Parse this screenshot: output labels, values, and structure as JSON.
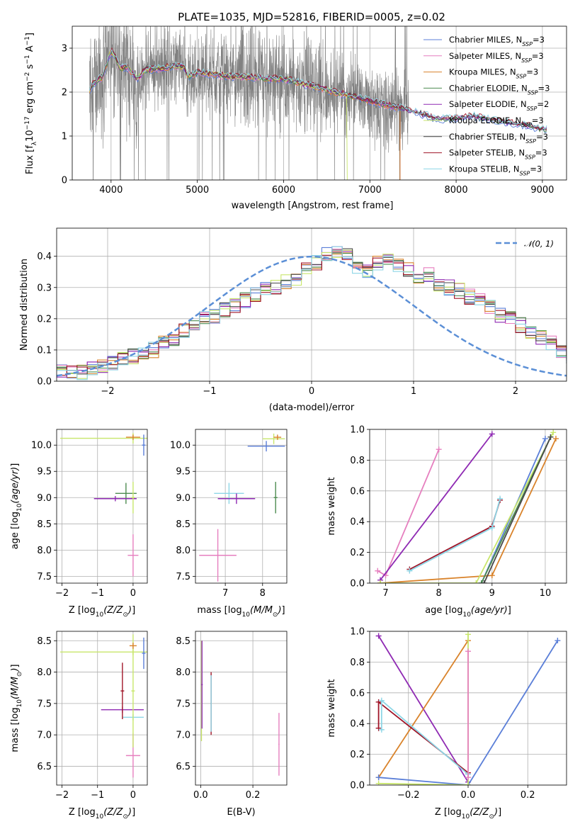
{
  "figure": {
    "title": "PLATE=1035, MJD=52816, FIBERID=0005, z=0.02"
  },
  "colors": {
    "chabrier_miles": "#5b7fd8",
    "salpeter_miles": "#e67fbf",
    "kroupa_miles": "#d9832b",
    "chabrier_elodie": "#4d8c50",
    "salpeter_elodie": "#8f2ab3",
    "kroupa_elodie": "#c8e66b",
    "chabrier_stelib": "#4a4a4a",
    "salpeter_stelib": "#a01528",
    "kroupa_stelib": "#8dd6e6",
    "data": "#808080",
    "normal": "#5b8fd6"
  },
  "chart_data": [
    {
      "id": "spectrum",
      "type": "line",
      "xlabel": "wavelength [Angstrom, rest frame]",
      "ylabel": "Flux [f",
      "ylabel_parts": {
        "a": "Flux [f",
        "sub1": "λ",
        "b": "10",
        "sup1": "−17",
        "c": " erg cm",
        "sup2": "−2",
        "d": " s",
        "sup3": "−1",
        "e": " A",
        "sup4": "−1",
        "f": "]"
      },
      "xlim": [
        3550,
        9280
      ],
      "ylim": [
        0,
        3.5
      ],
      "xticks": [
        4000,
        5000,
        6000,
        7000,
        8000,
        9000
      ],
      "yticks": [
        0,
        1,
        2,
        3
      ],
      "legend": [
        {
          "label": "Chabrier MILES, N",
          "sub": "SSP",
          "tail": "=3",
          "color": "chabrier_miles"
        },
        {
          "label": "Salpeter MILES, N",
          "sub": "SSP",
          "tail": "=3",
          "color": "salpeter_miles"
        },
        {
          "label": "Kroupa MILES, N",
          "sub": "SSP",
          "tail": "=3",
          "color": "kroupa_miles"
        },
        {
          "label": "Chabrier ELODIE, N",
          "sub": "SSP",
          "tail": "=3",
          "color": "chabrier_elodie"
        },
        {
          "label": "Salpeter ELODIE, N",
          "sub": "SSP",
          "tail": "=2",
          "color": "salpeter_elodie"
        },
        {
          "label": "Kroupa ELODIE, N",
          "sub": "SSP",
          "tail": "=3",
          "color": "kroupa_elodie"
        },
        {
          "label": "Chabrier STELIB, N",
          "sub": "SSP",
          "tail": "=3",
          "color": "chabrier_stelib"
        },
        {
          "label": "Salpeter STELIB, N",
          "sub": "SSP",
          "tail": "=3",
          "color": "salpeter_stelib"
        },
        {
          "label": "Kroupa STELIB, N",
          "sub": "SSP",
          "tail": "=3",
          "color": "kroupa_stelib"
        }
      ],
      "model_continuum": {
        "x": [
          3750,
          3800,
          3900,
          4000,
          4050,
          4100,
          4200,
          4300,
          4400,
          4600,
          4800,
          4850,
          4900,
          5000,
          5200,
          5400,
          5600,
          5800,
          6000,
          6200,
          6400,
          6600,
          6800,
          7000,
          7200,
          7400,
          7600,
          7800,
          8000,
          8200,
          8400,
          8600,
          8800,
          9000
        ],
        "y": [
          2.05,
          2.2,
          2.35,
          2.95,
          2.8,
          2.55,
          2.55,
          2.3,
          2.5,
          2.55,
          2.6,
          2.55,
          2.35,
          2.45,
          2.4,
          2.35,
          2.35,
          2.3,
          2.3,
          2.2,
          2.1,
          2.0,
          1.9,
          1.8,
          1.7,
          1.62,
          1.5,
          1.38,
          1.4,
          1.45,
          1.38,
          1.3,
          1.25,
          1.15
        ]
      }
    },
    {
      "id": "residuals",
      "type": "histogram",
      "xlabel": "(data-model)/error",
      "ylabel": "Normed distribution",
      "xlim": [
        -2.5,
        2.5
      ],
      "ylim": [
        0,
        0.49
      ],
      "xticks": [
        -2,
        -1,
        0,
        1,
        2
      ],
      "yticks": [
        0.0,
        0.1,
        0.2,
        0.3,
        0.4
      ],
      "legend_label": "𝒩(0, 1)",
      "bin_width": 0.1,
      "bin_start": -2.5,
      "base_values": [
        0.03,
        0.03,
        0.03,
        0.04,
        0.05,
        0.06,
        0.07,
        0.08,
        0.09,
        0.1,
        0.12,
        0.13,
        0.16,
        0.18,
        0.2,
        0.21,
        0.23,
        0.24,
        0.26,
        0.28,
        0.3,
        0.3,
        0.32,
        0.33,
        0.36,
        0.38,
        0.41,
        0.42,
        0.4,
        0.37,
        0.35,
        0.38,
        0.39,
        0.37,
        0.36,
        0.33,
        0.34,
        0.31,
        0.3,
        0.29,
        0.27,
        0.26,
        0.24,
        0.21,
        0.2,
        0.18,
        0.16,
        0.14,
        0.12,
        0.1,
        0.08,
        0.07,
        0.07,
        0.06,
        0.06,
        0.05,
        0.04,
        0.04,
        0.04,
        0.03
      ]
    },
    {
      "id": "age-vs-z",
      "type": "scatter",
      "xlabel": "Z [log10(Z/Z⊙)]",
      "ylabel": "age  [log10(age/yr)]",
      "xlim": [
        -2.15,
        0.4
      ],
      "ylim": [
        7.37,
        10.3
      ],
      "xticks": [
        -2,
        -1,
        0
      ],
      "yticks": [
        7.5,
        8.0,
        8.5,
        9.0,
        9.5,
        10.0
      ],
      "points": [
        {
          "x": 0.0,
          "y": 10.13,
          "xerr": 2.05,
          "yerr": 0.1,
          "color": "kroupa_elodie"
        },
        {
          "x": 0.3,
          "y": 10.0,
          "xerr": 0.05,
          "yerr": 0.2,
          "color": "chabrier_miles"
        },
        {
          "x": -0.2,
          "y": 9.08,
          "xerr": 0.3,
          "yerr": 0.2,
          "color": "chabrier_elodie"
        },
        {
          "x": -0.5,
          "y": 8.98,
          "xerr": 0.6,
          "yerr": 0.05,
          "color": "salpeter_elodie"
        },
        {
          "x": 0.0,
          "y": 9.0,
          "xerr": 0.05,
          "yerr": 0.3,
          "color": "kroupa_elodie"
        },
        {
          "x": 0.0,
          "y": 7.9,
          "xerr": 0.15,
          "yerr": 0.4,
          "color": "salpeter_miles"
        },
        {
          "x": 0.0,
          "y": 10.15,
          "xerr": 0.2,
          "yerr": 0.05,
          "color": "kroupa_miles"
        }
      ]
    },
    {
      "id": "age-vs-mass",
      "type": "scatter",
      "xlabel": "mass [log10(M/M⊙)]",
      "ylabel": "",
      "xlim": [
        6.2,
        8.65
      ],
      "ylim": [
        7.37,
        10.3
      ],
      "xticks": [
        7,
        8
      ],
      "yticks": [
        7.5,
        8.0,
        8.5,
        9.0,
        9.5,
        10.0
      ],
      "points": [
        {
          "x": 8.3,
          "y": 10.12,
          "xerr": 0.3,
          "yerr": 0.1,
          "color": "kroupa_elodie"
        },
        {
          "x": 8.1,
          "y": 9.98,
          "xerr": 0.5,
          "yerr": 0.1,
          "color": "chabrier_miles"
        },
        {
          "x": 7.1,
          "y": 9.08,
          "xerr": 0.4,
          "yerr": 0.2,
          "color": "kroupa_stelib"
        },
        {
          "x": 7.3,
          "y": 8.98,
          "xerr": 0.5,
          "yerr": 0.1,
          "color": "salpeter_elodie"
        },
        {
          "x": 8.35,
          "y": 9.0,
          "xerr": 0.05,
          "yerr": 0.3,
          "color": "chabrier_elodie"
        },
        {
          "x": 6.8,
          "y": 7.9,
          "xerr": 0.5,
          "yerr": 0.5,
          "color": "salpeter_miles"
        },
        {
          "x": 8.4,
          "y": 10.15,
          "xerr": 0.1,
          "yerr": 0.05,
          "color": "kroupa_miles"
        }
      ]
    },
    {
      "id": "weight-vs-age",
      "type": "line",
      "xlabel": "age  [log10(age/yr)]",
      "ylabel": "mass weight",
      "xlim": [
        6.7,
        10.4
      ],
      "ylim": [
        0.0,
        1.0
      ],
      "xticks": [
        7,
        8,
        9,
        10
      ],
      "yticks": [
        0.0,
        0.2,
        0.4,
        0.6,
        0.8,
        1.0
      ],
      "series": [
        {
          "color": "salpeter_miles",
          "x": [
            6.85,
            7.0,
            8.0
          ],
          "y": [
            0.08,
            0.05,
            0.87
          ]
        },
        {
          "color": "salpeter_elodie",
          "x": [
            6.9,
            9.0
          ],
          "y": [
            0.02,
            0.97
          ]
        },
        {
          "color": "salpeter_stelib",
          "x": [
            7.45,
            9.0,
            9.15
          ],
          "y": [
            0.09,
            0.37,
            0.54
          ]
        },
        {
          "color": "kroupa_stelib",
          "x": [
            7.45,
            9.0,
            9.15
          ],
          "y": [
            0.08,
            0.36,
            0.55
          ]
        },
        {
          "color": "kroupa_miles",
          "x": [
            6.9,
            9.0,
            10.2
          ],
          "y": [
            0.0,
            0.05,
            0.94
          ]
        },
        {
          "color": "chabrier_miles",
          "x": [
            8.8,
            10.0
          ],
          "y": [
            0.0,
            0.94
          ]
        },
        {
          "color": "kroupa_elodie",
          "x": [
            6.9,
            8.7,
            10.15
          ],
          "y": [
            0.0,
            0.0,
            0.98
          ]
        },
        {
          "color": "chabrier_elodie",
          "x": [
            8.8,
            10.1
          ],
          "y": [
            0.0,
            0.95
          ]
        },
        {
          "color": "chabrier_stelib",
          "x": [
            8.85,
            10.1
          ],
          "y": [
            0.0,
            0.95
          ]
        }
      ]
    },
    {
      "id": "mass-vs-z",
      "type": "scatter",
      "xlabel": "Z [log10(Z/Z⊙)]",
      "ylabel": "mass [log10(M/M⊙)]",
      "xlim": [
        -2.15,
        0.4
      ],
      "ylim": [
        6.2,
        8.65
      ],
      "xticks": [
        -2,
        -1,
        0
      ],
      "yticks": [
        6.5,
        7.0,
        7.5,
        8.0,
        8.5
      ],
      "points": [
        {
          "x": 0.0,
          "y": 8.32,
          "xerr": 2.05,
          "yerr": 0.05,
          "color": "kroupa_elodie"
        },
        {
          "x": 0.3,
          "y": 8.3,
          "xerr": 0.05,
          "yerr": 0.25,
          "color": "chabrier_miles"
        },
        {
          "x": -0.3,
          "y": 7.4,
          "xerr": 0.6,
          "yerr": 0.05,
          "color": "salpeter_elodie"
        },
        {
          "x": 0.0,
          "y": 7.28,
          "xerr": 0.3,
          "yerr": 0.05,
          "color": "kroupa_stelib"
        },
        {
          "x": -0.3,
          "y": 7.7,
          "xerr": 0.05,
          "yerr": 0.45,
          "color": "salpeter_stelib"
        },
        {
          "x": 0.0,
          "y": 6.67,
          "xerr": 0.2,
          "yerr": 0.35,
          "color": "salpeter_miles"
        },
        {
          "x": 0.0,
          "y": 7.7,
          "xerr": 0.05,
          "yerr": 0.9,
          "color": "kroupa_elodie"
        },
        {
          "x": 0.0,
          "y": 8.42,
          "xerr": 0.1,
          "yerr": 0.05,
          "color": "kroupa_miles"
        }
      ]
    },
    {
      "id": "mass-vs-ebv",
      "type": "scatter",
      "xlabel": "E(B-V)",
      "ylabel": "",
      "xlim": [
        -0.02,
        0.33
      ],
      "ylim": [
        6.2,
        8.65
      ],
      "xticks": [
        0.0,
        0.2
      ],
      "yticks": [
        6.5,
        7.0,
        7.5,
        8.0,
        8.5
      ],
      "points": [
        {
          "x": 0.003,
          "y": 7.7,
          "xerr": 0.003,
          "yerr": 0.8,
          "color": "kroupa_elodie"
        },
        {
          "x": 0.005,
          "y": 7.8,
          "xerr": 0.003,
          "yerr": 0.7,
          "color": "salpeter_elodie"
        },
        {
          "x": 0.04,
          "y": 7.5,
          "xerr": 0.002,
          "yerr": 0.5,
          "color": "salpeter_stelib"
        },
        {
          "x": 0.04,
          "y": 7.5,
          "xerr": 0.002,
          "yerr": 0.45,
          "color": "kroupa_stelib"
        },
        {
          "x": 0.3,
          "y": 6.85,
          "xerr": 0.002,
          "yerr": 0.5,
          "color": "salpeter_miles"
        }
      ]
    },
    {
      "id": "weight-vs-z",
      "type": "line",
      "xlabel": "Z [log10(Z/Z⊙)]",
      "ylabel": "mass weight",
      "xlim": [
        -0.33,
        0.33
      ],
      "ylim": [
        0.0,
        1.0
      ],
      "xticks": [
        -0.2,
        0.0,
        0.2
      ],
      "yticks": [
        0.0,
        0.2,
        0.4,
        0.6,
        0.8,
        1.0
      ],
      "series": [
        {
          "color": "salpeter_elodie",
          "x": [
            -0.3,
            0.0
          ],
          "y": [
            0.97,
            0.02
          ]
        },
        {
          "color": "kroupa_miles",
          "x": [
            -0.3,
            0.0
          ],
          "y": [
            0.05,
            0.94
          ]
        },
        {
          "color": "chabrier_miles",
          "x": [
            -0.3,
            0.0,
            0.3
          ],
          "y": [
            0.05,
            0.0,
            0.94
          ]
        },
        {
          "color": "salpeter_stelib",
          "x": [
            -0.3,
            -0.3,
            0.0
          ],
          "y": [
            0.37,
            0.54,
            0.08
          ]
        },
        {
          "color": "kroupa_stelib",
          "x": [
            -0.29,
            -0.29,
            0.0
          ],
          "y": [
            0.36,
            0.55,
            0.07
          ]
        },
        {
          "color": "kroupa_elodie",
          "x": [
            -0.3,
            0.0,
            0.0
          ],
          "y": [
            0.01,
            0.0,
            0.98
          ]
        },
        {
          "color": "salpeter_miles",
          "x": [
            0.0,
            0.0
          ],
          "y": [
            0.05,
            0.87
          ]
        }
      ]
    }
  ]
}
